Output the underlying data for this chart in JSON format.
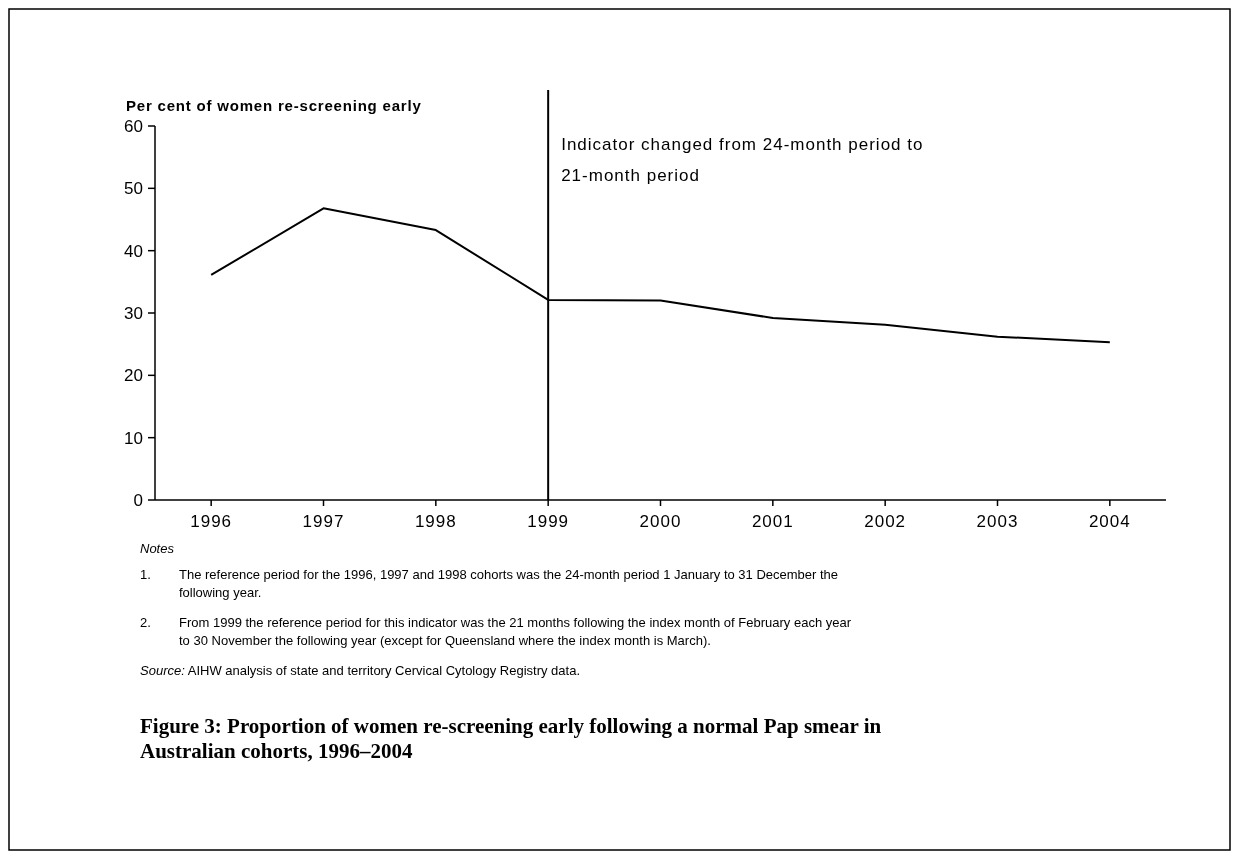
{
  "chart_data": {
    "type": "line",
    "title": "Figure 3: Proportion of women re-screening early following a normal Pap smear in Australian cohorts, 1996–2004",
    "ylabel": "Per cent of women re-screening early",
    "categories": [
      "1996",
      "1997",
      "1998",
      "1999",
      "2000",
      "2001",
      "2002",
      "2003",
      "2004"
    ],
    "series": [
      {
        "color": "#000000",
        "values": [
          36.1,
          46.8,
          43.3,
          32.1,
          32.0,
          29.2,
          28.1,
          26.2,
          25.3
        ]
      }
    ],
    "ylim": [
      0,
      60
    ],
    "yticks": [
      0,
      10,
      20,
      30,
      40,
      50,
      60
    ],
    "grid": false,
    "marker": "none",
    "line_style": "solid",
    "ref_lines": [
      {
        "axis": "x",
        "value": "1999",
        "label": "Indicator changed from 24-month period to 21-month period",
        "color": "#000000"
      }
    ],
    "annotations": [
      "Notes",
      "1. The reference period for the 1996, 1997 and 1998 cohorts was the 24-month period 1 January to 31 December the following year.",
      "2. From 1999 the reference period for this indicator was the 21 months following the index month of February each year to 30 November the following year (except for Queensland where the index month is March).",
      "Source: AIHW analysis of state and territory Cervical Cytology Registry data."
    ]
  }
}
